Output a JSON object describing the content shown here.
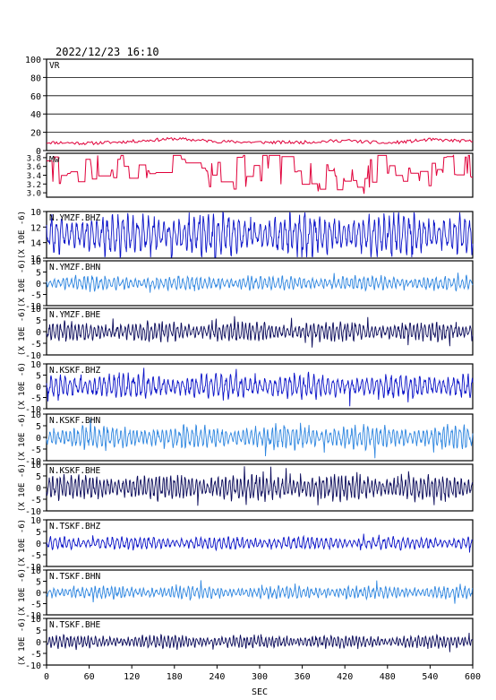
{
  "header": {
    "datetime": "2022/12/23  16:10"
  },
  "colors": {
    "vr": "#e0003a",
    "mw": "#e0003a",
    "bhz": "#0a12c8",
    "bhn": "#2e86e0",
    "bhe": "#0a0a5a",
    "frame": "#000000"
  },
  "chart_data": [
    {
      "type": "line",
      "label": "VR",
      "ylim": [
        0,
        100
      ],
      "ytick_labels": [
        "100",
        "80",
        "60",
        "40",
        "20",
        "0"
      ],
      "grid": true,
      "x": [
        0,
        60,
        120,
        180,
        240,
        300,
        360,
        420,
        480,
        540,
        600
      ],
      "series": [
        {
          "values": [
            9,
            8,
            10,
            13,
            10,
            9,
            9,
            11,
            8,
            12,
            10
          ]
        }
      ]
    },
    {
      "type": "line",
      "label": "Mw",
      "ylim": [
        2.9,
        3.9
      ],
      "ytick_labels": [
        "3.8",
        "3.6",
        "3.4",
        "3.2",
        "3.0"
      ],
      "x": [
        0,
        60,
        120,
        180,
        240,
        300,
        360,
        420,
        480,
        540,
        600
      ],
      "series": [
        {
          "values": [
            3.4,
            3.7,
            3.6,
            3.8,
            3.3,
            3.6,
            3.5,
            3.1,
            3.7,
            3.4,
            3.7
          ]
        }
      ]
    },
    {
      "type": "line",
      "label": "N.YMZF.BHZ",
      "ylim": [
        -15,
        15
      ],
      "ytick_labels": [
        "10",
        "12",
        "14",
        "16"
      ],
      "unit": "(X 10E -6)",
      "amplitude_scale": 1.0
    },
    {
      "type": "line",
      "label": "N.YMZF.BHN",
      "ylim": [
        -10,
        10
      ],
      "ytick_labels": [
        "10",
        "5",
        "0",
        "-5",
        "-10"
      ],
      "unit": "(X 10E -6)",
      "amplitude_scale": 0.35
    },
    {
      "type": "line",
      "label": "N.YMZF.BHE",
      "ylim": [
        -10,
        10
      ],
      "ytick_labels": [
        "10",
        "5",
        "0",
        "-5",
        "-10"
      ],
      "unit": "(X 10E -6)",
      "amplitude_scale": 0.45
    },
    {
      "type": "line",
      "label": "N.KSKF.BHZ",
      "ylim": [
        -10,
        10
      ],
      "ytick_labels": [
        "10",
        "5",
        "0",
        "-5",
        "-10"
      ],
      "unit": "(X 10E -6)",
      "amplitude_scale": 0.6
    },
    {
      "type": "line",
      "label": "N.KSKF.BHN",
      "ylim": [
        -10,
        10
      ],
      "ytick_labels": [
        "10",
        "5",
        "0",
        "-5",
        "-10"
      ],
      "unit": "(X 10E -6)",
      "amplitude_scale": 0.55
    },
    {
      "type": "line",
      "label": "N.KSKF.BHE",
      "ylim": [
        -10,
        10
      ],
      "ytick_labels": [
        "10",
        "5",
        "0",
        "-5",
        "-10"
      ],
      "unit": "(X 10E -6)",
      "amplitude_scale": 0.6
    },
    {
      "type": "line",
      "label": "N.TSKF.BHZ",
      "ylim": [
        -10,
        10
      ],
      "ytick_labels": [
        "10",
        "5",
        "0",
        "-5",
        "-10"
      ],
      "unit": "(X 10E -6)",
      "amplitude_scale": 0.3
    },
    {
      "type": "line",
      "label": "N.TSKF.BHN",
      "ylim": [
        -10,
        10
      ],
      "ytick_labels": [
        "10",
        "5",
        "0",
        "-5",
        "-10"
      ],
      "unit": "(X 10E -6)",
      "amplitude_scale": 0.3
    },
    {
      "type": "line",
      "label": "N.TSKF.BHE",
      "ylim": [
        -10,
        10
      ],
      "ytick_labels": [
        "10",
        "5",
        "0",
        "-5",
        "-10"
      ],
      "unit": "(X 10E -6)",
      "amplitude_scale": 0.3
    }
  ],
  "xaxis": {
    "xlabel": "SEC",
    "xlim": [
      0,
      600
    ],
    "ticks": [
      0,
      60,
      120,
      180,
      240,
      300,
      360,
      420,
      480,
      540,
      600
    ]
  }
}
